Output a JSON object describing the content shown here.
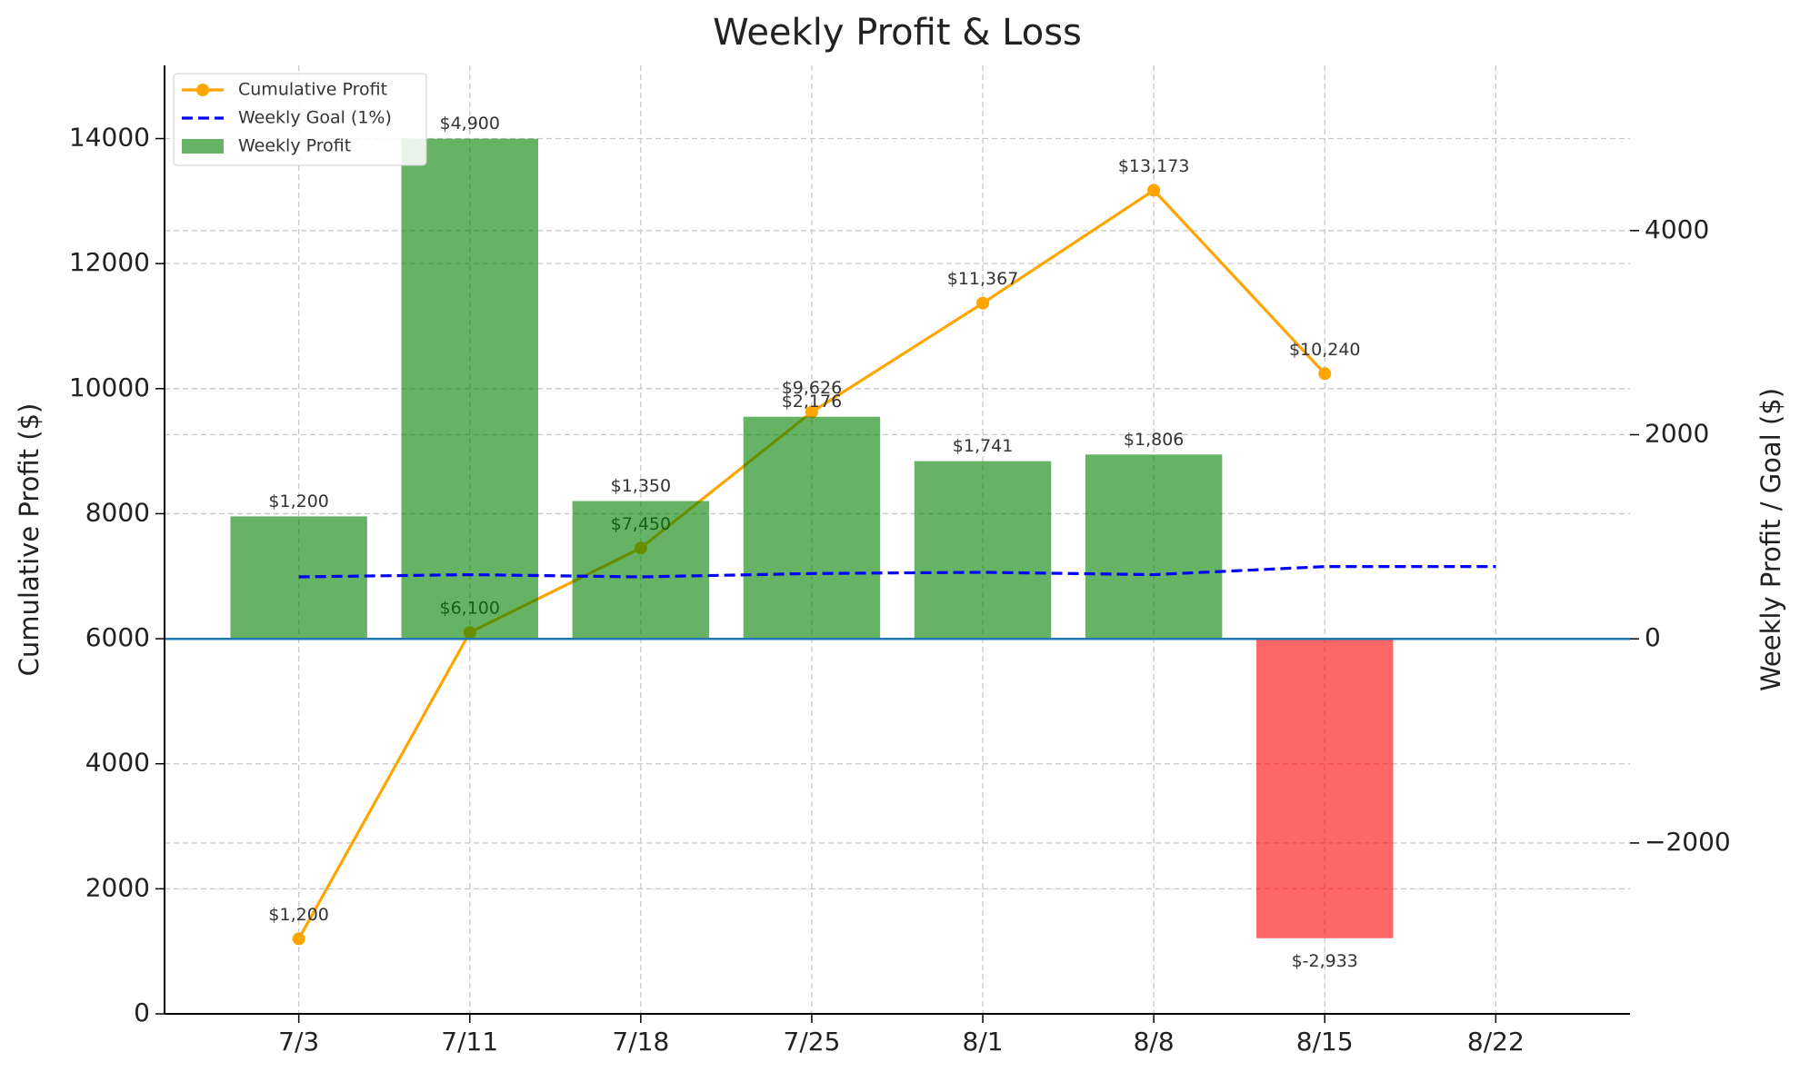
{
  "chart_data": {
    "type": "combo",
    "title": "Weekly Profit & Loss",
    "ylabel": "Cumulative Profit ($)",
    "y2label": "Weekly Profit / Goal ($)",
    "categories": [
      "7/3",
      "7/11",
      "7/18",
      "7/25",
      "8/1",
      "8/8",
      "8/15",
      "8/22"
    ],
    "series": [
      {
        "name": "Cumulative Profit",
        "type": "line",
        "axis": "y",
        "color": "orange",
        "marker": "circle",
        "values": [
          1200,
          6100,
          7450,
          9626,
          11367,
          13173,
          10240,
          null
        ],
        "value_labels": [
          "$1,200",
          "$6,100",
          "$7,450",
          "$9,626",
          "$11,367",
          "$13,173",
          "$10,240",
          null
        ]
      },
      {
        "name": "Weekly Goal (1%)",
        "type": "line",
        "axis": "y2",
        "color": "blue",
        "dashed": true,
        "values": [
          607,
          629,
          607,
          640,
          652,
          629,
          708,
          708
        ]
      },
      {
        "name": "Weekly Profit",
        "type": "bar",
        "axis": "y2",
        "color": "green",
        "negative_color": "red",
        "values": [
          1200,
          4900,
          1350,
          2176,
          1741,
          1806,
          -2933,
          null
        ],
        "value_labels": [
          "$1,200",
          "$4,900",
          "$1,350",
          "$2,176",
          "$1,741",
          "$1,806",
          "$-2,933",
          null
        ]
      }
    ],
    "ylim": [
      0,
      15170
    ],
    "yticks": [
      0,
      2000,
      4000,
      6000,
      8000,
      10000,
      12000,
      14000
    ],
    "y2lim": [
      -3674,
      5618
    ],
    "y2ticks": [
      {
        "value": -2000,
        "label": "−2000"
      },
      0,
      2000,
      4000
    ],
    "zero_line_color": "#1f77b4",
    "grid": true,
    "legend": "upper left"
  }
}
